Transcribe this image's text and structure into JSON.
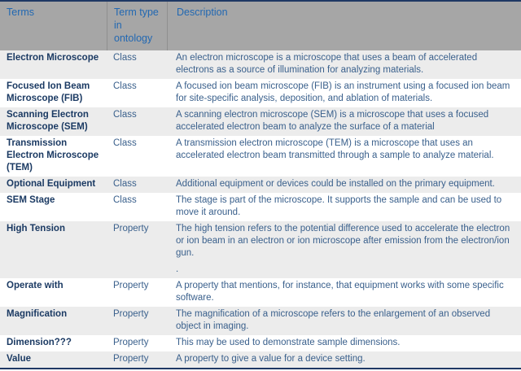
{
  "colors": {
    "header_bg": "#a6a6a6",
    "header_text": "#2268b2",
    "band_row_bg": "#ececec",
    "plain_row_bg": "#ffffff",
    "term_text": "#1b3a63",
    "body_text": "#3a608c",
    "table_border": "#1f3864",
    "header_divider": "#8f8f8f"
  },
  "table": {
    "columns": [
      {
        "label": "Terms"
      },
      {
        "label": "Term type in ontology"
      },
      {
        "label": "Description"
      }
    ],
    "rows": [
      {
        "term": "Electron Microscope",
        "type": "Class",
        "description": "An electron microscope is a microscope that uses a beam of accelerated electrons as a source of illumination for analyzing materials."
      },
      {
        "term": "Focused Ion Beam Microscope (FIB)",
        "type": "Class",
        "description": "A focused ion beam microscope (FIB) is an instrument using a focused ion beam for site-specific analysis, deposition, and ablation of materials."
      },
      {
        "term": "Scanning Electron Microscope (SEM)",
        "type": "Class",
        "description": "A scanning electron microscope (SEM) is a microscope that uses a focused accelerated electron beam to analyze the surface of a material"
      },
      {
        "term": "Transmission Electron Microscope (TEM)",
        "type": "Class",
        "description": "A transmission electron microscope (TEM) is a microscope that uses an accelerated electron beam transmitted through a sample to analyze material."
      },
      {
        "term": "Optional Equipment",
        "type": "Class",
        "description": "Additional equipment or devices could be installed on the primary equipment."
      },
      {
        "term": "SEM Stage",
        "type": "Class",
        "description": "The stage is part of the microscope. It supports the sample and can be used to move it around."
      },
      {
        "term": "High Tension",
        "type": "Property",
        "description": "The high tension refers to the potential difference used to accelerate the electron or ion beam in an electron or ion microscope after emission from the electron/ion gun.",
        "description_extra": "."
      },
      {
        "term": "Operate with",
        "type": "Property",
        "description": "A property that mentions, for instance, that equipment works with some specific software."
      },
      {
        "term": "Magnification",
        "type": "Property",
        "description": "The magnification of a microscope refers to the enlargement of an observed object in imaging."
      },
      {
        "term": "Dimension???",
        "type": "Property",
        "description": "This may be used to demonstrate sample dimensions."
      },
      {
        "term": "Value",
        "type": "Property",
        "description": "A property to give a value for a device setting."
      }
    ]
  }
}
